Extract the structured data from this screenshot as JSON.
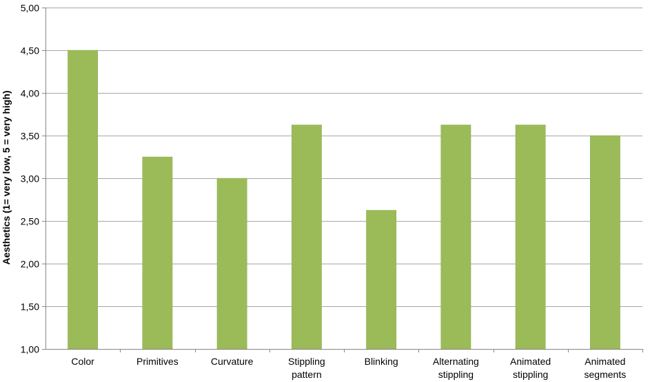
{
  "colors": {
    "bar": "#9bbb59",
    "bar_stroke": "#8aab48",
    "gridline": "#a6a6a6",
    "axis": "#868686"
  },
  "chart_data": {
    "type": "bar",
    "title": "",
    "xlabel": "",
    "ylabel": "Aesthetics (1= very low, 5 = very high)",
    "ylim": [
      1,
      5
    ],
    "y_ticks": [
      "1,00",
      "1,50",
      "2,00",
      "2,50",
      "3,00",
      "3,50",
      "4,00",
      "4,50",
      "5,00"
    ],
    "grid": true,
    "legend": "none",
    "categories": [
      [
        "Color"
      ],
      [
        "Primitives"
      ],
      [
        "Curvature"
      ],
      [
        "Stippling",
        "pattern"
      ],
      [
        "Blinking"
      ],
      [
        "Alternating",
        "stippling"
      ],
      [
        "Animated",
        "stippling"
      ],
      [
        "Animated",
        "segments"
      ]
    ],
    "values": [
      4.5,
      3.25,
      3.0,
      3.625,
      2.625,
      3.625,
      3.625,
      3.5
    ]
  }
}
